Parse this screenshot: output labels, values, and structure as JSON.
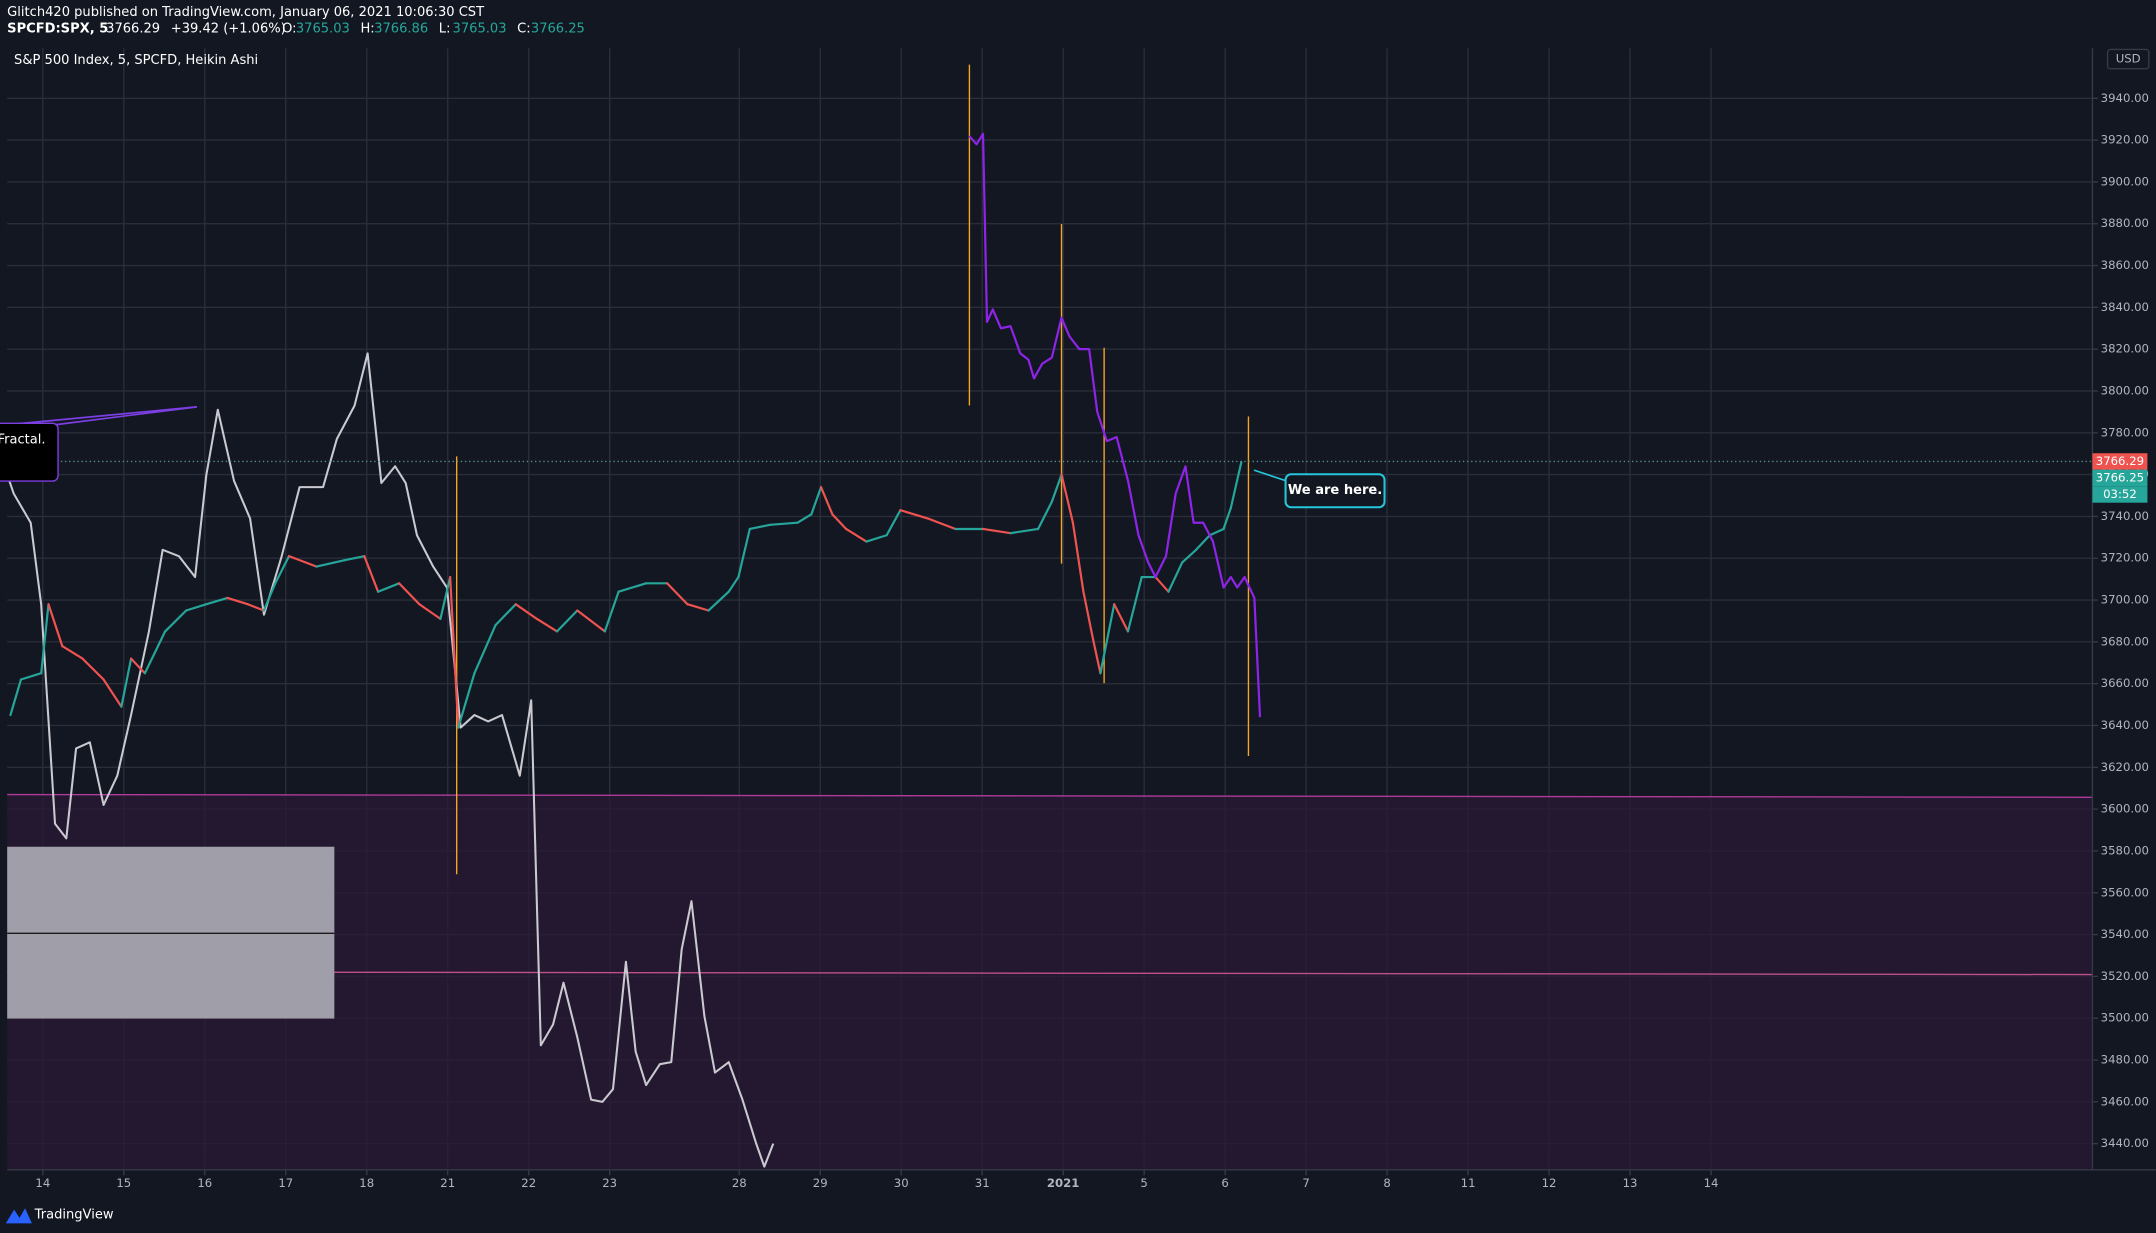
{
  "header": {
    "publisher": "Glitch420 published on TradingView.com, January 06, 2021 10:06:30 CST",
    "symbol": "SPCFD:SPX, 5",
    "last": 3766.29,
    "change": "+39.42 (+1.06%)",
    "ohlc": [
      {
        "label": "O:",
        "value": 3765.03
      },
      {
        "label": "H:",
        "value": 3766.86
      },
      {
        "label": "L:",
        "value": 3765.03
      },
      {
        "label": "C:",
        "value": 3766.25
      }
    ]
  },
  "chart_data": {
    "type": "line",
    "title": "S&P 500 Index, 5, SPCFD, Heikin Ashi",
    "currency": "USD",
    "annotations": [
      "We are here.",
      "Fractal."
    ],
    "price_tags": [
      {
        "value": 3766.29,
        "color": "#ef5350"
      },
      {
        "value": 3766.25,
        "color": "#26a69a"
      },
      {
        "label": "03:52",
        "color": "#26a69a"
      }
    ],
    "grid": true,
    "xlim": [
      -0.44,
      25.31
    ],
    "xticks": [
      {
        "value": 0,
        "label": "14"
      },
      {
        "value": 1,
        "label": "15"
      },
      {
        "value": 2,
        "label": "16"
      },
      {
        "value": 3,
        "label": "17"
      },
      {
        "value": 4,
        "label": "18"
      },
      {
        "value": 5,
        "label": "21"
      },
      {
        "value": 6,
        "label": "22"
      },
      {
        "value": 7,
        "label": "23"
      },
      {
        "value": 8.6,
        "label": "28"
      },
      {
        "value": 9.6,
        "label": "29"
      },
      {
        "value": 10.6,
        "label": "30"
      },
      {
        "value": 11.6,
        "label": "31"
      },
      {
        "value": 12.6,
        "label": "2021"
      },
      {
        "value": 13.6,
        "label": "5"
      },
      {
        "value": 14.6,
        "label": "6"
      },
      {
        "value": 15.6,
        "label": "7"
      },
      {
        "value": 16.6,
        "label": "8"
      },
      {
        "value": 17.6,
        "label": "11"
      },
      {
        "value": 18.6,
        "label": "12"
      },
      {
        "value": 19.6,
        "label": "13"
      },
      {
        "value": 20.6,
        "label": "14"
      }
    ],
    "ylim": [
      3427.5,
      3964
    ],
    "yticks": [
      {
        "value": 3440,
        "label": "3440.00"
      },
      {
        "value": 3460,
        "label": "3460.00"
      },
      {
        "value": 3480,
        "label": "3480.00"
      },
      {
        "value": 3500,
        "label": "3500.00"
      },
      {
        "value": 3520,
        "label": "3520.00"
      },
      {
        "value": 3540,
        "label": "3540.00"
      },
      {
        "value": 3560,
        "label": "3560.00"
      },
      {
        "value": 3580,
        "label": "3580.00"
      },
      {
        "value": 3600,
        "label": "3600.00"
      },
      {
        "value": 3620,
        "label": "3620.00"
      },
      {
        "value": 3640,
        "label": "3640.00"
      },
      {
        "value": 3660,
        "label": "3660.00"
      },
      {
        "value": 3680,
        "label": "3680.00"
      },
      {
        "value": 3700,
        "label": "3700.00"
      },
      {
        "value": 3720,
        "label": "3720.00"
      },
      {
        "value": 3740,
        "label": "3740.00"
      },
      {
        "value": 3760,
        "label": "3760.00"
      },
      {
        "value": 3780,
        "label": "3780.00"
      },
      {
        "value": 3800,
        "label": "3800.00"
      },
      {
        "value": 3820,
        "label": "3820.00"
      },
      {
        "value": 3840,
        "label": "3840.00"
      },
      {
        "value": 3860,
        "label": "3860.00"
      },
      {
        "value": 3880,
        "label": "3880.00"
      },
      {
        "value": 3900,
        "label": "3900.00"
      },
      {
        "value": 3920,
        "label": "3920.00"
      },
      {
        "value": 3940,
        "label": "3940.00"
      }
    ],
    "series": [
      {
        "color": "#c9c9cf",
        "width": 1.5,
        "x": [
          -0.44,
          -0.36,
          -0.15,
          -0.02,
          0.15,
          0.29,
          0.41,
          0.58,
          0.75,
          0.92,
          1.09,
          1.31,
          1.48,
          1.68,
          1.88,
          2.02,
          2.16,
          2.36,
          2.56,
          2.73,
          2.95,
          3.17,
          3.46,
          3.63,
          3.85,
          4.01,
          4.18,
          4.35,
          4.48,
          4.62,
          4.82,
          4.99,
          5.16,
          5.33,
          5.5,
          5.67,
          5.89,
          6.03,
          6.15,
          6.3,
          6.43,
          6.6,
          6.77,
          6.91,
          7.04,
          7.2,
          7.32,
          7.45,
          7.62,
          7.76,
          7.89,
          8.01,
          8.17,
          8.3,
          8.47,
          8.64,
          8.81,
          8.91,
          9.02
        ],
        "values": [
          3760,
          3751,
          3737,
          3698,
          3593,
          3586,
          3629,
          3632,
          3602,
          3616,
          3645,
          3685,
          3724,
          3721,
          3711,
          3760,
          3791,
          3757,
          3739,
          3693,
          3721,
          3754,
          3754,
          3777,
          3793,
          3818,
          3756,
          3764,
          3756,
          3731,
          3716,
          3706,
          3639,
          3645,
          3642,
          3645,
          3616,
          3652,
          3487,
          3497,
          3517,
          3491,
          3461,
          3460,
          3466,
          3527,
          3484,
          3468,
          3478,
          3479,
          3533,
          3556,
          3501,
          3474,
          3479,
          3461,
          3440,
          3429,
          3440
        ]
      },
      {
        "color": "#26a69a",
        "down_color": "#ef5350",
        "width": 1.6,
        "x": [
          -0.4,
          -0.27,
          -0.02,
          0.07,
          0.24,
          0.49,
          0.75,
          0.97,
          1.09,
          1.26,
          1.51,
          1.77,
          2.02,
          2.28,
          2.53,
          2.73,
          2.87,
          3.04,
          3.38,
          3.72,
          3.97,
          4.14,
          4.4,
          4.65,
          4.91,
          5.03,
          5.13,
          5.33,
          5.59,
          5.84,
          6.1,
          6.35,
          6.6,
          6.94,
          7.11,
          7.45,
          7.71,
          7.96,
          8.22,
          8.47,
          8.59,
          8.73,
          8.98,
          9.32,
          9.49,
          9.61,
          9.75,
          9.92,
          10.17,
          10.42,
          10.59,
          10.93,
          11.27,
          11.61,
          11.95,
          12.29,
          12.46,
          12.58,
          12.72,
          12.85,
          12.97,
          13.06,
          13.23,
          13.4,
          13.57,
          13.74,
          13.9,
          14.07,
          14.24,
          14.41,
          14.58,
          14.67,
          14.8
        ],
        "values": [
          3645,
          3662,
          3665,
          3698,
          3678,
          3672,
          3662,
          3649,
          3672,
          3665,
          3685,
          3695,
          3698,
          3701,
          3698,
          3695,
          3708,
          3721,
          3716,
          3719,
          3721,
          3704,
          3708,
          3698,
          3691,
          3711,
          3639,
          3665,
          3688,
          3698,
          3691,
          3685,
          3695,
          3685,
          3704,
          3708,
          3708,
          3698,
          3695,
          3704,
          3711,
          3734,
          3736,
          3737,
          3741,
          3754,
          3741,
          3734,
          3728,
          3731,
          3743,
          3739,
          3734,
          3734,
          3732,
          3734,
          3747,
          3760,
          3737,
          3704,
          3681,
          3665,
          3698,
          3685,
          3711,
          3711,
          3704,
          3718,
          3724,
          3731,
          3734,
          3744,
          3766
        ]
      },
      {
        "color": "#8e24e8",
        "width": 1.6,
        "x": [
          11.44,
          11.53,
          11.61,
          11.66,
          11.73,
          11.83,
          11.95,
          12.07,
          12.17,
          12.24,
          12.34,
          12.46,
          12.58,
          12.68,
          12.8,
          12.92,
          13.02,
          13.14,
          13.26,
          13.4,
          13.53,
          13.65,
          13.74,
          13.87,
          13.99,
          14.11,
          14.21,
          14.33,
          14.45,
          14.58,
          14.67,
          14.75,
          14.84,
          14.96,
          15.03
        ],
        "values": [
          3922,
          3918,
          3923,
          3833,
          3839,
          3830,
          3831,
          3818,
          3815,
          3806,
          3813,
          3816,
          3835,
          3826,
          3820,
          3820,
          3790,
          3776,
          3778,
          3757,
          3731,
          3718,
          3711,
          3721,
          3751,
          3764,
          3737,
          3737,
          3728,
          3706,
          3711,
          3706,
          3711,
          3701,
          3644
        ]
      }
    ]
  },
  "footer": {
    "brand": "TradingView"
  }
}
